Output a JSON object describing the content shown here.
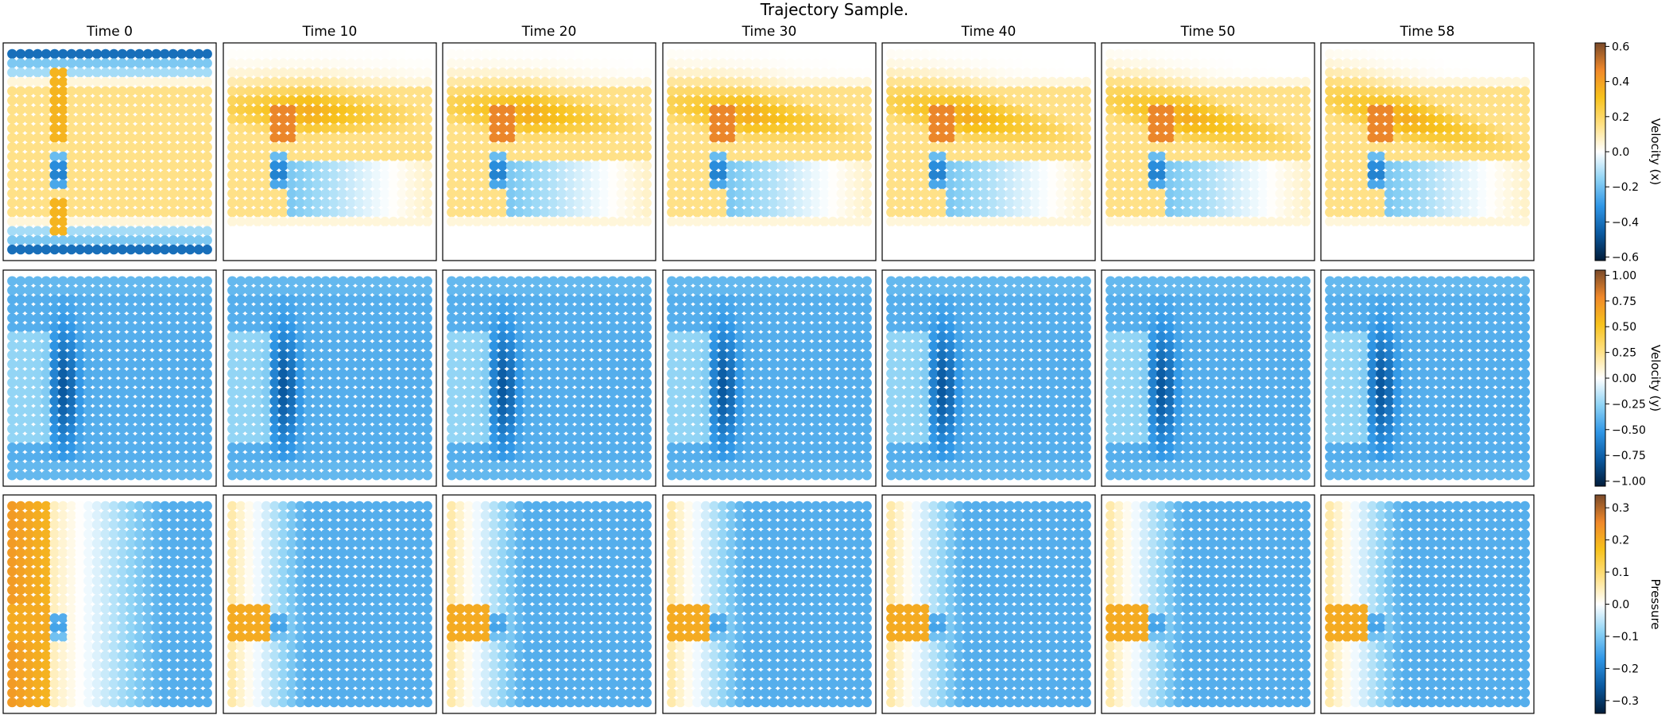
{
  "title": "Trajectory Sample.",
  "chart_data": {
    "type": "heatmap",
    "title": "Trajectory Sample.",
    "columns": [
      "Time 0",
      "Time 10",
      "Time 20",
      "Time 30",
      "Time 40",
      "Time 50",
      "Time 58"
    ],
    "rows": [
      {
        "quantity": "Velocity (x)",
        "colorbar": {
          "range": [
            -0.62,
            0.62
          ],
          "ticks": [
            -0.6,
            -0.4,
            -0.2,
            0.0,
            0.2,
            0.4,
            0.6
          ],
          "tick_labels": [
            "−0.6",
            "−0.4",
            "−0.2",
            "0.0",
            "0.2",
            "0.4",
            "0.6"
          ]
        }
      },
      {
        "quantity": "Velocity (y)",
        "colorbar": {
          "range": [
            -1.05,
            1.05
          ],
          "ticks": [
            -1.0,
            -0.75,
            -0.5,
            -0.25,
            0.0,
            0.25,
            0.5,
            0.75,
            1.0
          ],
          "tick_labels": [
            "−1.00",
            "−0.75",
            "−0.50",
            "−0.25",
            "0.00",
            "0.25",
            "0.50",
            "0.75",
            "1.00"
          ]
        }
      },
      {
        "quantity": "Pressure",
        "colorbar": {
          "range": [
            -0.34,
            0.34
          ],
          "ticks": [
            -0.3,
            -0.2,
            -0.1,
            0.0,
            0.1,
            0.2,
            0.3
          ],
          "tick_labels": [
            "−0.3",
            "−0.2",
            "−0.1",
            "0.0",
            "0.1",
            "0.2",
            "0.3"
          ]
        }
      }
    ],
    "colormap": [
      "#021d3a",
      "#0a59a0",
      "#2f96e6",
      "#8ed3f5",
      "#ffffff",
      "#ffe083",
      "#f7c21c",
      "#f0882a",
      "#7a4a2a"
    ],
    "grid": false,
    "legend": "colorbars-right"
  }
}
